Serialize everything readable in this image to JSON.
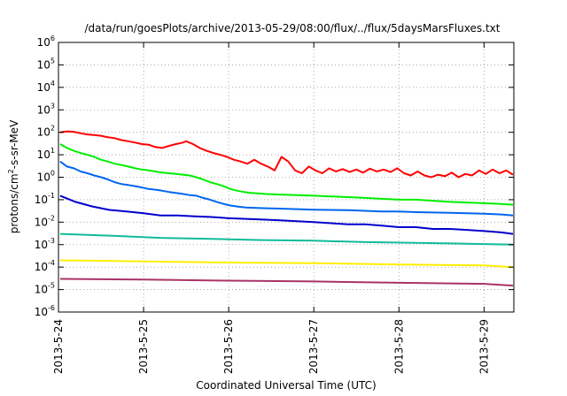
{
  "chart_data": {
    "type": "line",
    "title": "/data/run/goesPlots/archive/2013-05-29/08:00/flux/../flux/5daysMarsFluxes.txt",
    "xlabel": "Coordinated Universal Time (UTC)",
    "ylabel": "protons/cm²-s-sr-MeV",
    "ylabel_parts": {
      "pre": "protons/cm",
      "sup": "2",
      "post": "-s-sr-MeV"
    },
    "yscale": "log",
    "ylim": [
      1e-06,
      1000000.0
    ],
    "xlim_days": [
      0,
      5.35
    ],
    "y_ticks": [
      {
        "exp": -6,
        "base": "10",
        "sup": "-6"
      },
      {
        "exp": -5,
        "base": "10",
        "sup": "-5"
      },
      {
        "exp": -4,
        "base": "10",
        "sup": "-4"
      },
      {
        "exp": -3,
        "base": "10",
        "sup": "-3"
      },
      {
        "exp": -2,
        "base": "10",
        "sup": "-2"
      },
      {
        "exp": -1,
        "base": "10",
        "sup": "-1"
      },
      {
        "exp": 0,
        "base": "10",
        "sup": "0"
      },
      {
        "exp": 1,
        "base": "10",
        "sup": "1"
      },
      {
        "exp": 2,
        "base": "10",
        "sup": "2"
      },
      {
        "exp": 3,
        "base": "10",
        "sup": "3"
      },
      {
        "exp": 4,
        "base": "10",
        "sup": "4"
      },
      {
        "exp": 5,
        "base": "10",
        "sup": "5"
      },
      {
        "exp": 6,
        "base": "10",
        "sup": "6"
      }
    ],
    "x_ticks": [
      {
        "day": 0,
        "label": "2013-5-24"
      },
      {
        "day": 1,
        "label": "2013-5-25"
      },
      {
        "day": 2,
        "label": "2013-5-26"
      },
      {
        "day": 3,
        "label": "2013-5-27"
      },
      {
        "day": 4,
        "label": "2013-5-28"
      },
      {
        "day": 5,
        "label": "2013-5-29"
      }
    ],
    "grid": true,
    "series": [
      {
        "color": "#ff0000",
        "x": [
          0.02,
          0.1,
          0.18,
          0.26,
          0.34,
          0.42,
          0.5,
          0.58,
          0.66,
          0.74,
          0.82,
          0.9,
          0.98,
          1.06,
          1.14,
          1.22,
          1.3,
          1.38,
          1.46,
          1.5,
          1.58,
          1.66,
          1.74,
          1.82,
          1.9,
          1.98,
          2.06,
          2.14,
          2.22,
          2.3,
          2.38,
          2.46,
          2.54,
          2.62,
          2.7,
          2.78,
          2.86,
          2.94,
          3.02,
          3.1,
          3.18,
          3.26,
          3.34,
          3.42,
          3.5,
          3.58,
          3.66,
          3.74,
          3.82,
          3.9,
          3.98,
          4.06,
          4.14,
          4.22,
          4.3,
          4.38,
          4.46,
          4.54,
          4.62,
          4.7,
          4.78,
          4.86,
          4.94,
          5.02,
          5.1,
          5.18,
          5.26,
          5.34
        ],
        "y": [
          100,
          110,
          105,
          90,
          80,
          75,
          70,
          60,
          55,
          45,
          40,
          35,
          30,
          28,
          22,
          20,
          25,
          30,
          35,
          40,
          30,
          20,
          15,
          12,
          10,
          8,
          6,
          5,
          4,
          6,
          4,
          3,
          2,
          8,
          5,
          2,
          1.5,
          3,
          2,
          1.5,
          2.5,
          1.8,
          2.3,
          1.7,
          2.2,
          1.6,
          2.4,
          1.8,
          2.2,
          1.7,
          2.5,
          1.5,
          1.2,
          1.8,
          1.2,
          1,
          1.3,
          1.1,
          1.6,
          1,
          1.4,
          1.2,
          2,
          1.4,
          2.2,
          1.5,
          2,
          1.3
        ]
      },
      {
        "color": "#00ee00",
        "x": [
          0.02,
          0.1,
          0.18,
          0.26,
          0.34,
          0.42,
          0.5,
          0.58,
          0.66,
          0.74,
          0.82,
          0.9,
          0.98,
          1.06,
          1.14,
          1.22,
          1.3,
          1.38,
          1.46,
          1.54,
          1.62,
          1.7,
          1.78,
          1.86,
          1.94,
          2.02,
          2.1,
          2.18,
          2.26,
          2.34,
          2.42,
          2.6,
          2.8,
          3.0,
          3.2,
          3.4,
          3.6,
          3.8,
          4.0,
          4.2,
          4.4,
          4.6,
          4.8,
          5.0,
          5.2,
          5.34
        ],
        "y": [
          30,
          20,
          15,
          12,
          10,
          8,
          6,
          5,
          4,
          3.5,
          3,
          2.5,
          2.2,
          2,
          1.8,
          1.6,
          1.5,
          1.4,
          1.3,
          1.2,
          1,
          0.8,
          0.6,
          0.5,
          0.4,
          0.3,
          0.25,
          0.22,
          0.2,
          0.19,
          0.18,
          0.17,
          0.16,
          0.15,
          0.14,
          0.13,
          0.12,
          0.11,
          0.1,
          0.1,
          0.09,
          0.08,
          0.075,
          0.07,
          0.065,
          0.06
        ]
      },
      {
        "color": "#0066ee",
        "x": [
          0.02,
          0.1,
          0.18,
          0.26,
          0.34,
          0.42,
          0.5,
          0.58,
          0.66,
          0.74,
          0.82,
          0.9,
          0.98,
          1.06,
          1.14,
          1.22,
          1.3,
          1.38,
          1.46,
          1.54,
          1.62,
          1.7,
          1.78,
          1.86,
          1.94,
          2.02,
          2.1,
          2.2,
          2.4,
          2.6,
          2.8,
          3.0,
          3.2,
          3.4,
          3.6,
          3.8,
          4.0,
          4.2,
          4.4,
          4.6,
          4.8,
          5.0,
          5.2,
          5.34
        ],
        "y": [
          5,
          3,
          2.5,
          1.8,
          1.5,
          1.2,
          1,
          0.8,
          0.6,
          0.5,
          0.45,
          0.4,
          0.35,
          0.3,
          0.28,
          0.25,
          0.22,
          0.2,
          0.18,
          0.16,
          0.15,
          0.12,
          0.1,
          0.08,
          0.065,
          0.055,
          0.05,
          0.045,
          0.042,
          0.04,
          0.038,
          0.036,
          0.035,
          0.034,
          0.032,
          0.03,
          0.03,
          0.028,
          0.027,
          0.026,
          0.025,
          0.024,
          0.022,
          0.02
        ]
      },
      {
        "color": "#0000cc",
        "x": [
          0.02,
          0.2,
          0.4,
          0.6,
          0.8,
          1.0,
          1.2,
          1.4,
          1.6,
          1.8,
          2.0,
          2.2,
          2.4,
          2.6,
          2.8,
          3.0,
          3.2,
          3.4,
          3.6,
          3.8,
          4.0,
          4.2,
          4.4,
          4.6,
          4.8,
          5.0,
          5.2,
          5.34
        ],
        "y": [
          0.15,
          0.08,
          0.05,
          0.035,
          0.03,
          0.025,
          0.02,
          0.02,
          0.018,
          0.017,
          0.015,
          0.014,
          0.013,
          0.012,
          0.011,
          0.01,
          0.009,
          0.008,
          0.008,
          0.007,
          0.006,
          0.006,
          0.005,
          0.005,
          0.0045,
          0.004,
          0.0035,
          0.003
        ]
      },
      {
        "color": "#11bb99",
        "x": [
          0.02,
          0.6,
          1.2,
          1.8,
          2.4,
          3.0,
          3.6,
          4.2,
          4.8,
          5.34
        ],
        "y": [
          0.003,
          0.0025,
          0.002,
          0.0018,
          0.0016,
          0.0015,
          0.0013,
          0.0012,
          0.0011,
          0.001
        ]
      },
      {
        "color": "#ffee00",
        "x": [
          0.02,
          1.0,
          2.0,
          3.0,
          4.0,
          5.0,
          5.34
        ],
        "y": [
          0.0002,
          0.00018,
          0.00016,
          0.00015,
          0.00013,
          0.00012,
          0.0001
        ]
      },
      {
        "color": "#aa3366",
        "x": [
          0.02,
          1.0,
          2.0,
          3.0,
          4.0,
          5.0,
          5.34
        ],
        "y": [
          3e-05,
          2.8e-05,
          2.5e-05,
          2.3e-05,
          2e-05,
          1.8e-05,
          1.5e-05
        ]
      }
    ]
  }
}
